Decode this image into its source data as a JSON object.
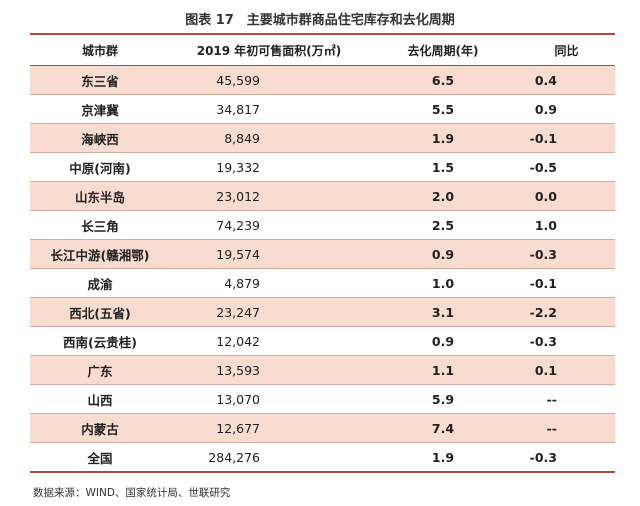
{
  "title": "图表 17　主要城市群商品住宅库存和去化周期",
  "table": {
    "header": [
      "城市群",
      "2019 年初可售面积(万㎡)",
      "去化周期(年)",
      "同比"
    ],
    "rows": [
      [
        "东三省",
        "45,599",
        "6.5",
        "0.4"
      ],
      [
        "京津冀",
        "34,817",
        "5.5",
        "0.9"
      ],
      [
        "海峡西",
        "8,849",
        "1.9",
        "-0.1"
      ],
      [
        "中原(河南)",
        "19,332",
        "1.5",
        "-0.5"
      ],
      [
        "山东半岛",
        "23,012",
        "2.0",
        "0.0"
      ],
      [
        "长三角",
        "74,239",
        "2.5",
        "1.0"
      ],
      [
        "长江中游(赣湘鄂)",
        "19,574",
        "0.9",
        "-0.3"
      ],
      [
        "成渝",
        "4,879",
        "1.0",
        "-0.1"
      ],
      [
        "西北(五省)",
        "23,247",
        "3.1",
        "-2.2"
      ],
      [
        "西南(云贵桂)",
        "12,042",
        "0.9",
        "-0.3"
      ],
      [
        "广东",
        "13,593",
        "1.1",
        "0.1"
      ],
      [
        "山西",
        "13,070",
        "5.9",
        "--"
      ],
      [
        "内蒙古",
        "12,677",
        "7.4",
        "--"
      ],
      [
        "全国",
        "284,276",
        "1.9",
        "-0.3"
      ]
    ]
  },
  "source": "数据来源：WIND、国家统计局、世联研究"
}
